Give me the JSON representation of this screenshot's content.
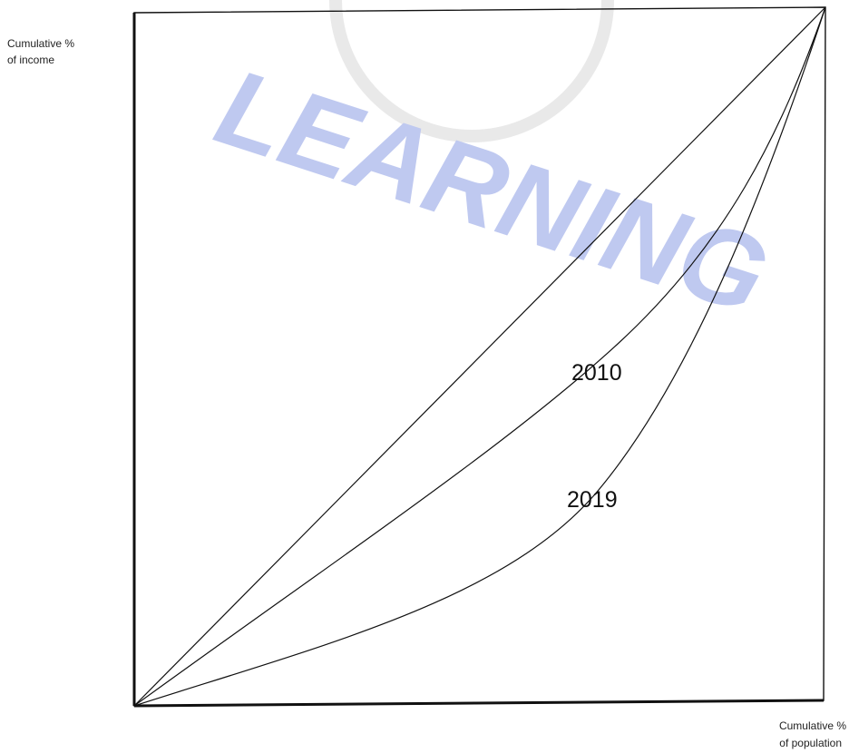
{
  "axis_labels": {
    "y": [
      "Cumulative %",
      "of income"
    ],
    "x": [
      "Cumulative %",
      "of population"
    ]
  },
  "curves": [
    {
      "label": "2010"
    },
    {
      "label": "2019"
    }
  ],
  "watermark": "LEARNING"
}
